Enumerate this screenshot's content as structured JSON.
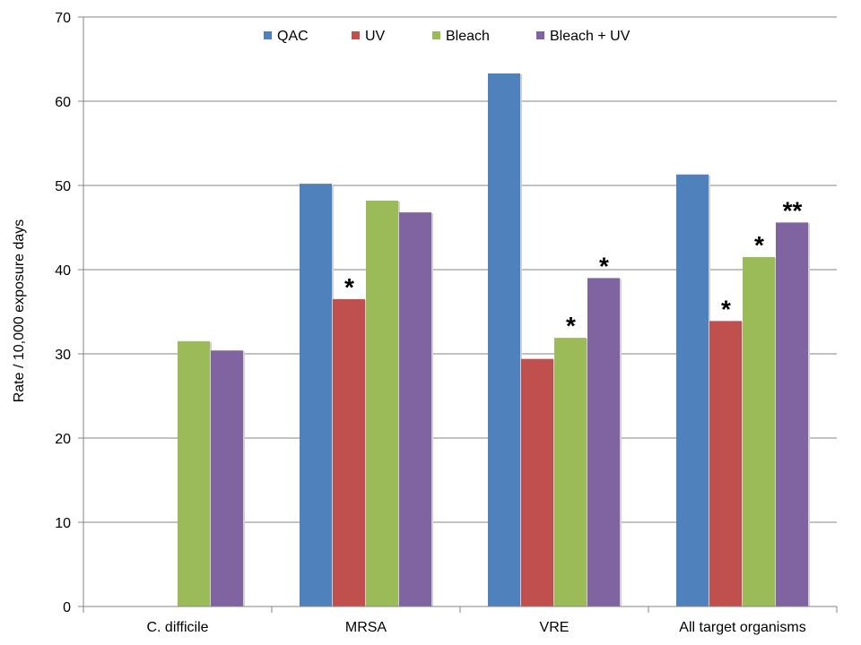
{
  "chart_data": {
    "type": "bar",
    "title": "",
    "xlabel": "",
    "ylabel": "Rate / 10,000 exposure days",
    "ylim": [
      0,
      70
    ],
    "yticks": [
      0,
      10,
      20,
      30,
      40,
      50,
      60,
      70
    ],
    "grid": true,
    "legend_position": "top-center",
    "categories": [
      "C. difficile",
      "MRSA",
      "VRE",
      "All target organisms"
    ],
    "series": [
      {
        "name": "QAC",
        "color": "#4F81BD",
        "values": [
          null,
          50.2,
          63.3,
          51.3
        ],
        "markers": [
          "",
          "",
          "",
          ""
        ]
      },
      {
        "name": "UV",
        "color": "#C0504D",
        "values": [
          null,
          36.5,
          29.4,
          33.9
        ],
        "markers": [
          "",
          "*",
          "",
          "*"
        ]
      },
      {
        "name": "Bleach",
        "color": "#9BBB59",
        "values": [
          31.5,
          48.2,
          31.9,
          41.5
        ],
        "markers": [
          "",
          "",
          "*",
          "*"
        ]
      },
      {
        "name": "Bleach + UV",
        "color": "#8064A2",
        "values": [
          30.4,
          46.8,
          39.0,
          45.6
        ],
        "markers": [
          "",
          "",
          "*",
          "**"
        ]
      }
    ]
  }
}
